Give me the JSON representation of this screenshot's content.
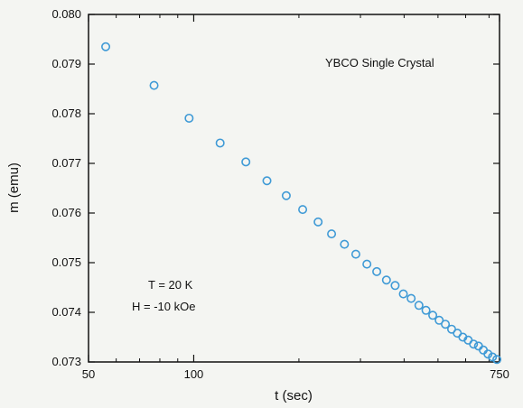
{
  "chart_data": {
    "type": "scatter",
    "title": "",
    "xlabel": "t (sec)",
    "ylabel": "m (emu)",
    "x_scale": "log",
    "xlim": [
      50,
      750
    ],
    "ylim": [
      0.073,
      0.08
    ],
    "x_ticks": [
      {
        "value": 50,
        "label": "50"
      },
      {
        "value": 100,
        "label": "100"
      },
      {
        "value": 750,
        "label": "750"
      }
    ],
    "y_ticks": [
      {
        "value": 0.073,
        "label": "0.073"
      },
      {
        "value": 0.074,
        "label": "0.074"
      },
      {
        "value": 0.075,
        "label": "0.075"
      },
      {
        "value": 0.076,
        "label": "0.076"
      },
      {
        "value": 0.077,
        "label": "0.077"
      },
      {
        "value": 0.078,
        "label": "0.078"
      },
      {
        "value": 0.079,
        "label": "0.079"
      },
      {
        "value": 0.08,
        "label": "0.080"
      }
    ],
    "grid": false,
    "marker": "open-circle",
    "marker_color": "#3f9ad6",
    "annotations": {
      "sample": "YBCO Single Crystal",
      "temperature": "T = 20 K",
      "field": "H = -10 kOe"
    },
    "series": [
      {
        "x": [
          56,
          77,
          97,
          119,
          141,
          162,
          184,
          205,
          227,
          248,
          270,
          291,
          313,
          334,
          356,
          377,
          398,
          419,
          441,
          462,
          483,
          504,
          525,
          547,
          568,
          589,
          610,
          632,
          653,
          674,
          695,
          716,
          737
        ],
        "y": [
          0.07935,
          0.07857,
          0.07791,
          0.07741,
          0.07703,
          0.07665,
          0.07635,
          0.07607,
          0.07582,
          0.07558,
          0.07537,
          0.07517,
          0.07497,
          0.07482,
          0.07465,
          0.07454,
          0.07437,
          0.07428,
          0.07414,
          0.07404,
          0.07394,
          0.07384,
          0.07376,
          0.07366,
          0.07358,
          0.0735,
          0.07344,
          0.07336,
          0.07332,
          0.07324,
          0.07316,
          0.0731,
          0.07305
        ]
      }
    ]
  }
}
